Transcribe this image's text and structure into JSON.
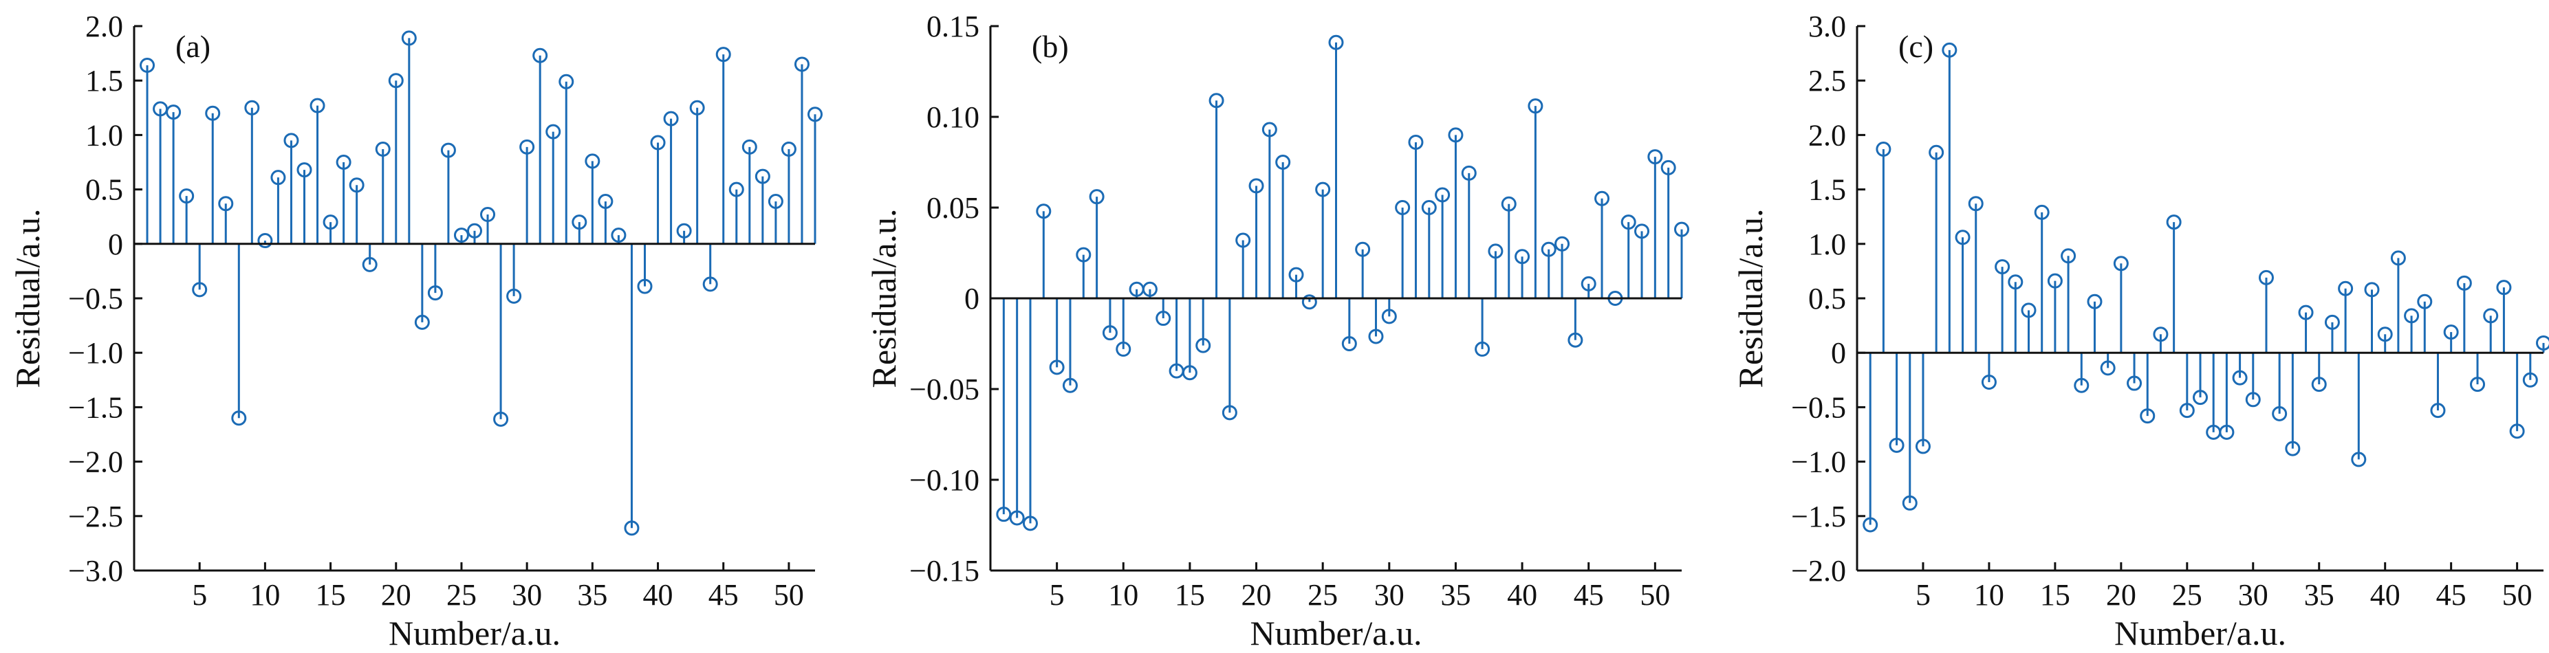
{
  "colors": {
    "stem": "#1b6bb5",
    "axis": "#111111",
    "text": "#111111"
  },
  "chart_data": [
    {
      "type": "stem",
      "panel_label": "(a)",
      "xlabel": "Number/a.u.",
      "ylabel": "Residual/a.u.",
      "xlim": [
        0,
        52
      ],
      "ylim": [
        -3.0,
        2.0
      ],
      "xticks": [
        5,
        10,
        15,
        20,
        25,
        30,
        35,
        40,
        45,
        50
      ],
      "yticks": [
        -3.0,
        -2.5,
        -2.0,
        -1.5,
        -1.0,
        -0.5,
        0,
        0.5,
        1.0,
        1.5,
        2.0
      ],
      "ytick_labels": [
        "−3.0",
        "−2.5",
        "−2.0",
        "−1.5",
        "−1.0",
        "−0.5",
        "0",
        "0.5",
        "1.0",
        "1.5",
        "2.0"
      ],
      "grid": false,
      "x": [
        1,
        2,
        3,
        4,
        5,
        6,
        7,
        8,
        9,
        10,
        11,
        12,
        13,
        14,
        15,
        16,
        17,
        18,
        19,
        20,
        21,
        22,
        23,
        24,
        25,
        26,
        27,
        28,
        29,
        30,
        31,
        32,
        33,
        34,
        35,
        36,
        37,
        38,
        39,
        40,
        41,
        42,
        43,
        44,
        45,
        46,
        47,
        48,
        49,
        50,
        51,
        52
      ],
      "values": [
        1.64,
        1.24,
        1.21,
        0.44,
        -0.42,
        1.2,
        0.37,
        -1.6,
        1.25,
        0.03,
        0.61,
        0.95,
        0.68,
        1.27,
        0.2,
        0.75,
        0.54,
        -0.19,
        0.87,
        1.5,
        1.89,
        -0.72,
        -0.45,
        0.86,
        0.08,
        0.12,
        0.27,
        -1.61,
        -0.48,
        0.89,
        1.73,
        1.03,
        1.49,
        0.2,
        0.76,
        0.39,
        0.08,
        -2.61,
        -0.39,
        0.93,
        1.15,
        0.12,
        1.25,
        -0.37,
        1.74,
        0.5,
        0.89,
        0.62,
        0.39,
        0.87,
        1.65,
        1.19
      ]
    },
    {
      "type": "stem",
      "panel_label": "(b)",
      "xlabel": "Number/a.u.",
      "ylabel": "Residual/a.u.",
      "xlim": [
        0,
        52
      ],
      "ylim": [
        -0.15,
        0.15
      ],
      "xticks": [
        5,
        10,
        15,
        20,
        25,
        30,
        35,
        40,
        45,
        50
      ],
      "yticks": [
        -0.15,
        -0.1,
        -0.05,
        0,
        0.05,
        0.1,
        0.15
      ],
      "ytick_labels": [
        "−0.15",
        "−0.10",
        "−0.05",
        "0",
        "0.05",
        "0.10",
        "0.15"
      ],
      "grid": false,
      "x": [
        1,
        2,
        3,
        4,
        5,
        6,
        7,
        8,
        9,
        10,
        11,
        12,
        13,
        14,
        15,
        16,
        17,
        18,
        19,
        20,
        21,
        22,
        23,
        24,
        25,
        26,
        27,
        28,
        29,
        30,
        31,
        32,
        33,
        34,
        35,
        36,
        37,
        38,
        39,
        40,
        41,
        42,
        43,
        44,
        45,
        46,
        47,
        48,
        49,
        50,
        51,
        52
      ],
      "values": [
        -0.119,
        -0.121,
        -0.124,
        0.048,
        -0.038,
        -0.048,
        0.024,
        0.056,
        -0.019,
        -0.028,
        0.005,
        0.005,
        -0.011,
        -0.04,
        -0.041,
        -0.026,
        0.109,
        -0.063,
        0.032,
        0.062,
        0.093,
        0.075,
        0.013,
        -0.002,
        0.06,
        0.141,
        -0.025,
        0.027,
        -0.021,
        -0.01,
        0.05,
        0.086,
        0.05,
        0.057,
        0.09,
        0.069,
        -0.028,
        0.026,
        0.052,
        0.023,
        0.106,
        0.027,
        0.03,
        -0.023,
        0.008,
        0.055,
        -0.0,
        0.042,
        0.037,
        0.078,
        0.072,
        0.038
      ]
    },
    {
      "type": "stem",
      "panel_label": "(c)",
      "xlabel": "Number/a.u.",
      "ylabel": "Residual/a.u.",
      "xlim": [
        0,
        52
      ],
      "ylim": [
        -2.0,
        3.0
      ],
      "xticks": [
        5,
        10,
        15,
        20,
        25,
        30,
        35,
        40,
        45,
        50
      ],
      "yticks": [
        -2.0,
        -1.5,
        -1.0,
        -0.5,
        0,
        0.5,
        1.0,
        1.5,
        2.0,
        2.5,
        3.0
      ],
      "ytick_labels": [
        "−2.0",
        "−1.5",
        "−1.0",
        "−0.5",
        "0",
        "0.5",
        "1.0",
        "1.5",
        "2.0",
        "2.5",
        "3.0"
      ],
      "grid": false,
      "x": [
        1,
        2,
        3,
        4,
        5,
        6,
        7,
        8,
        9,
        10,
        11,
        12,
        13,
        14,
        15,
        16,
        17,
        18,
        19,
        20,
        21,
        22,
        23,
        24,
        25,
        26,
        27,
        28,
        29,
        30,
        31,
        32,
        33,
        34,
        35,
        36,
        37,
        38,
        39,
        40,
        41,
        42,
        43,
        44,
        45,
        46,
        47,
        48,
        49,
        50,
        51,
        52
      ],
      "values": [
        -1.58,
        1.87,
        -0.85,
        -1.38,
        -0.86,
        1.84,
        2.78,
        1.06,
        1.37,
        -0.27,
        0.79,
        0.65,
        0.39,
        1.29,
        0.66,
        0.89,
        -0.3,
        0.47,
        -0.14,
        0.82,
        -0.28,
        -0.58,
        0.17,
        1.2,
        -0.53,
        -0.41,
        -0.73,
        -0.73,
        -0.23,
        -0.43,
        0.69,
        -0.56,
        -0.88,
        0.37,
        -0.29,
        0.28,
        0.59,
        -0.98,
        0.58,
        0.17,
        0.87,
        0.34,
        0.47,
        -0.53,
        0.19,
        0.64,
        -0.29,
        0.34,
        0.6,
        -0.72,
        -0.25,
        0.09
      ]
    }
  ]
}
